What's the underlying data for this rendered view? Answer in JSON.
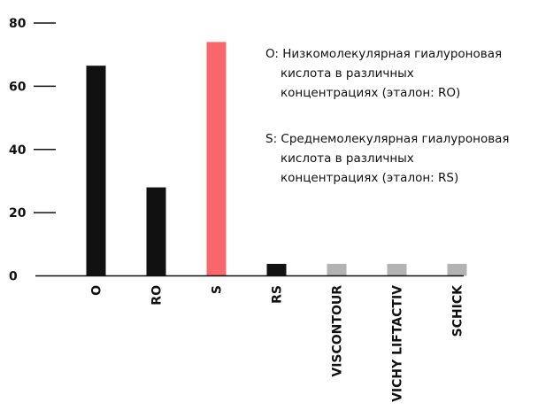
{
  "chart_data": {
    "type": "bar",
    "title": "",
    "xlabel": "",
    "ylabel": "",
    "ylim": [
      0,
      80
    ],
    "yticks": [
      0,
      20,
      40,
      60,
      80
    ],
    "grid": false,
    "categories": [
      "O",
      "RO",
      "S",
      "RS",
      "VISCONTOUR",
      "VICHY LIFTACTIV",
      "SCHICK"
    ],
    "values": [
      66.5,
      28,
      74,
      3.8,
      3.8,
      3.8,
      3.8
    ],
    "colors": [
      "#111111",
      "#111111",
      "#f7676c",
      "#111111",
      "#b3b3b3",
      "#b3b3b3",
      "#b3b3b3"
    ]
  },
  "annotations": {
    "o_lines": [
      "O: Низкомолекулярная гиалуроновая",
      "кислота в различных",
      "концентрациях (эталон: RO)"
    ],
    "s_lines": [
      "S: Среднемолекулярная гиалуроновая",
      "кислота в различных",
      "концентрациях (эталон: RS)"
    ]
  }
}
